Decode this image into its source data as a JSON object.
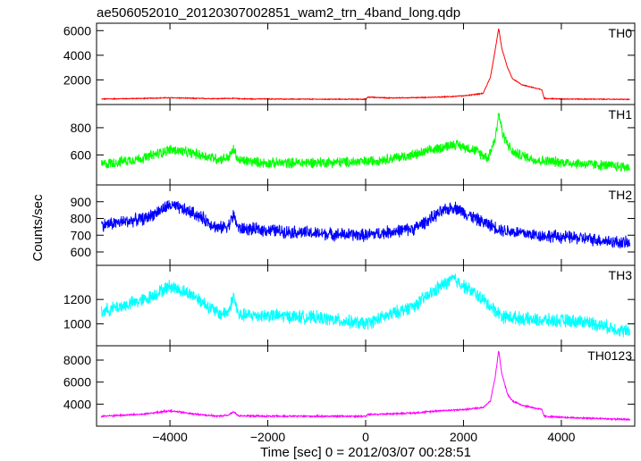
{
  "chart_data": {
    "type": "line",
    "title": "ae506052010_20120307002851_wam2_trn_4band_long.qdp",
    "xlabel": "Time [sec] 0 = 2012/03/07 00:28:51",
    "ylabel": "Counts/sec",
    "xlim": [
      -5500,
      5500
    ],
    "xticks": [
      -4000,
      -2000,
      0,
      2000,
      4000
    ],
    "xtick_labels": [
      "−4000",
      "−2000",
      "0",
      "2000",
      "4000"
    ],
    "panels": [
      {
        "name": "TH0",
        "color": "#ff0000",
        "ylim": [
          0,
          6600
        ],
        "yticks": [
          2000,
          4000,
          6000
        ],
        "x": [
          -5400,
          -4500,
          -4000,
          -3500,
          -3000,
          -2800,
          -2700,
          -2500,
          -1000,
          0,
          50,
          500,
          1000,
          1500,
          2000,
          2400,
          2550,
          2650,
          2720,
          2780,
          2900,
          3000,
          3200,
          3600,
          3650,
          4000,
          5400
        ],
        "y": [
          450,
          500,
          550,
          500,
          480,
          500,
          500,
          460,
          430,
          430,
          600,
          530,
          560,
          600,
          700,
          900,
          2200,
          4500,
          6200,
          4600,
          3000,
          2100,
          1600,
          1200,
          500,
          450,
          420
        ],
        "noise": 40
      },
      {
        "name": "TH1",
        "color": "#00ff00",
        "ylim": [
          380,
          970
        ],
        "yticks": [
          600,
          800
        ],
        "x": [
          -5400,
          -4500,
          -4000,
          -3500,
          -3000,
          -2800,
          -2700,
          -2600,
          -2000,
          0,
          1000,
          1500,
          1800,
          2200,
          2500,
          2650,
          2720,
          2800,
          3000,
          3500,
          5400
        ],
        "y": [
          530,
          580,
          640,
          610,
          570,
          580,
          640,
          560,
          540,
          550,
          600,
          650,
          680,
          640,
          580,
          720,
          910,
          750,
          620,
          560,
          510
        ],
        "noise": 45
      },
      {
        "name": "TH2",
        "color": "#0000ff",
        "ylim": [
          520,
          1000
        ],
        "yticks": [
          600,
          700,
          800,
          900
        ],
        "x": [
          -5400,
          -4500,
          -4000,
          -3500,
          -3000,
          -2800,
          -2700,
          -2600,
          -2000,
          -1000,
          0,
          1000,
          1500,
          1800,
          2300,
          2800,
          3500,
          4500,
          5400
        ],
        "y": [
          760,
          800,
          880,
          830,
          740,
          760,
          820,
          740,
          730,
          710,
          700,
          740,
          830,
          870,
          790,
          730,
          700,
          680,
          650
        ],
        "noise": 45
      },
      {
        "name": "TH3",
        "color": "#00ffff",
        "ylim": [
          820,
          1480
        ],
        "yticks": [
          1000,
          1200
        ],
        "x": [
          -5400,
          -4500,
          -4000,
          -3500,
          -3000,
          -2800,
          -2700,
          -2600,
          -2000,
          -1000,
          0,
          1000,
          1500,
          1800,
          2300,
          2800,
          3500,
          4500,
          5400
        ],
        "y": [
          1100,
          1200,
          1310,
          1230,
          1080,
          1100,
          1230,
          1070,
          1070,
          1050,
          1000,
          1150,
          1300,
          1370,
          1230,
          1060,
          1030,
          1020,
          930
        ],
        "noise": 65
      },
      {
        "name": "TH0123",
        "color": "#ff00ff",
        "ylim": [
          2000,
          9300
        ],
        "yticks": [
          4000,
          6000,
          8000
        ],
        "x": [
          -5400,
          -4500,
          -4000,
          -3500,
          -3000,
          -2800,
          -2700,
          -2600,
          -2000,
          0,
          50,
          1000,
          1500,
          2000,
          2400,
          2550,
          2650,
          2720,
          2780,
          2900,
          3000,
          3200,
          3600,
          3650,
          4000,
          5400
        ],
        "y": [
          2900,
          3100,
          3400,
          3100,
          2900,
          3000,
          3300,
          2950,
          2900,
          2900,
          3050,
          3200,
          3400,
          3500,
          3700,
          4300,
          6500,
          8900,
          6800,
          4900,
          4300,
          3900,
          3500,
          2900,
          2800,
          2600
        ],
        "noise": 80
      }
    ]
  }
}
